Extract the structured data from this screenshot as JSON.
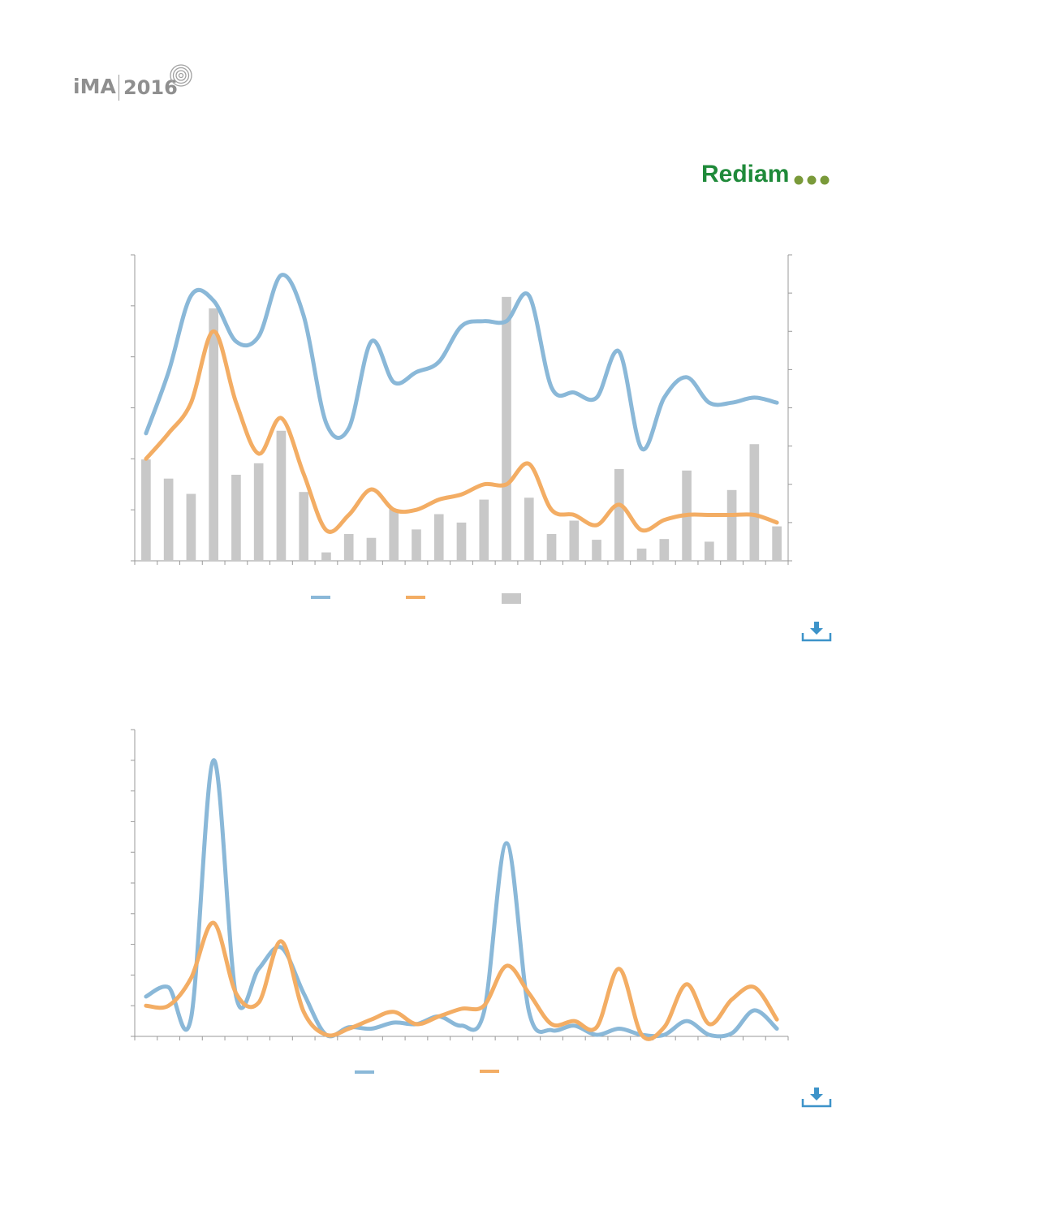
{
  "header": {
    "ima_logo_text": "iMA",
    "ima_logo_year": "2016",
    "rediam_logo_text": "Rediam"
  },
  "colors": {
    "series_blue": "#8ab8d8",
    "series_orange": "#f3ad64",
    "bars_gray": "#c8c8c8",
    "axis": "#999999",
    "rediam_green": "#1f8a3a",
    "rediam_dots": "#7a9a3a",
    "download_icon": "#3d93c9"
  },
  "icons": {
    "download_top": "download-icon",
    "download_bottom": "download-icon"
  },
  "chart_data": [
    {
      "type": "line",
      "grid": false,
      "legend_placement": "bottom",
      "x": [
        1,
        2,
        3,
        4,
        5,
        6,
        7,
        8,
        9,
        10,
        11,
        12,
        13,
        14,
        15,
        16,
        17,
        18,
        19,
        20,
        21,
        22,
        23,
        24,
        25,
        26,
        27,
        28,
        29
      ],
      "ylim": [
        0,
        6
      ],
      "y2lim": [
        0,
        8
      ],
      "series": [
        {
          "values": [
            2.5,
            3.7,
            5.2,
            5.1,
            4.3,
            4.4,
            5.6,
            4.8,
            2.7,
            2.6,
            4.3,
            3.5,
            3.7,
            3.9,
            4.6,
            4.7,
            4.7,
            5.2,
            3.4,
            3.3,
            3.2,
            4.1,
            2.2,
            3.2,
            3.6,
            3.1,
            3.1,
            3.2,
            3.1
          ]
        },
        {
          "values": [
            2.0,
            2.5,
            3.1,
            4.5,
            3.1,
            2.1,
            2.8,
            1.7,
            0.6,
            0.9,
            1.4,
            1.0,
            1.0,
            1.2,
            1.3,
            1.5,
            1.5,
            1.9,
            1.0,
            0.9,
            0.7,
            1.1,
            0.6,
            0.8,
            0.9,
            0.9,
            0.9,
            0.9,
            0.75
          ]
        },
        {
          "type": "bar",
          "axis": "right",
          "values": [
            2.65,
            2.15,
            1.75,
            6.6,
            2.25,
            2.55,
            3.4,
            1.8,
            0.22,
            0.7,
            0.6,
            1.35,
            0.82,
            1.22,
            1.0,
            1.6,
            6.9,
            1.65,
            0.7,
            1.05,
            0.55,
            2.4,
            0.32,
            0.57,
            2.36,
            0.5,
            1.85,
            3.05,
            0.9
          ]
        }
      ]
    },
    {
      "type": "line",
      "grid": false,
      "legend_placement": "bottom",
      "x": [
        1,
        2,
        3,
        4,
        5,
        6,
        7,
        8,
        9,
        10,
        11,
        12,
        13,
        14,
        15,
        16,
        17,
        18,
        19,
        20,
        21,
        22,
        23,
        24,
        25,
        26,
        27,
        28,
        29
      ],
      "ylim": [
        0,
        10
      ],
      "series": [
        {
          "values": [
            1.3,
            1.6,
            0.6,
            9.0,
            1.3,
            2.2,
            2.9,
            1.4,
            0.05,
            0.3,
            0.25,
            0.45,
            0.4,
            0.65,
            0.35,
            0.8,
            6.3,
            0.8,
            0.2,
            0.35,
            0.05,
            0.25,
            0.05,
            0.05,
            0.5,
            0.05,
            0.1,
            0.85,
            0.25
          ]
        },
        {
          "values": [
            1.0,
            1.0,
            1.9,
            3.7,
            1.4,
            1.1,
            3.1,
            0.8,
            0.05,
            0.25,
            0.55,
            0.8,
            0.4,
            0.65,
            0.9,
            1.0,
            2.3,
            1.4,
            0.4,
            0.5,
            0.3,
            2.2,
            0.05,
            0.3,
            1.7,
            0.4,
            1.2,
            1.6,
            0.55
          ]
        }
      ]
    }
  ]
}
